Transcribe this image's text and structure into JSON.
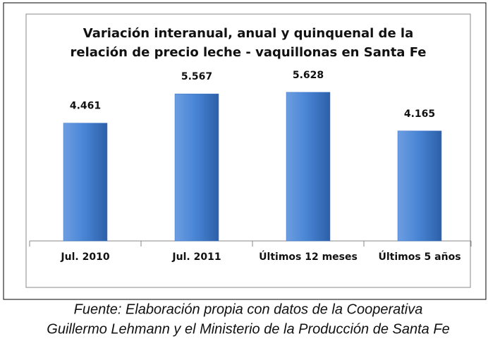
{
  "chart_data": {
    "type": "bar",
    "title": [
      "Variación interanual, anual y quinquenal de la",
      "relación de precio leche - vaquillonas en Santa Fe"
    ],
    "categories": [
      "Jul. 2010",
      "Jul. 2011",
      "Últimos 12 meses",
      "Últimos 5 años"
    ],
    "values": [
      4.461,
      5.567,
      5.628,
      4.165
    ],
    "color": "#3f78c8",
    "ylim": [
      0,
      8
    ],
    "source": [
      "Fuente: Elaboración propia con datos de la Cooperativa",
      "Guillermo Lehmann y el Ministerio de la Producción de Santa Fe"
    ]
  }
}
